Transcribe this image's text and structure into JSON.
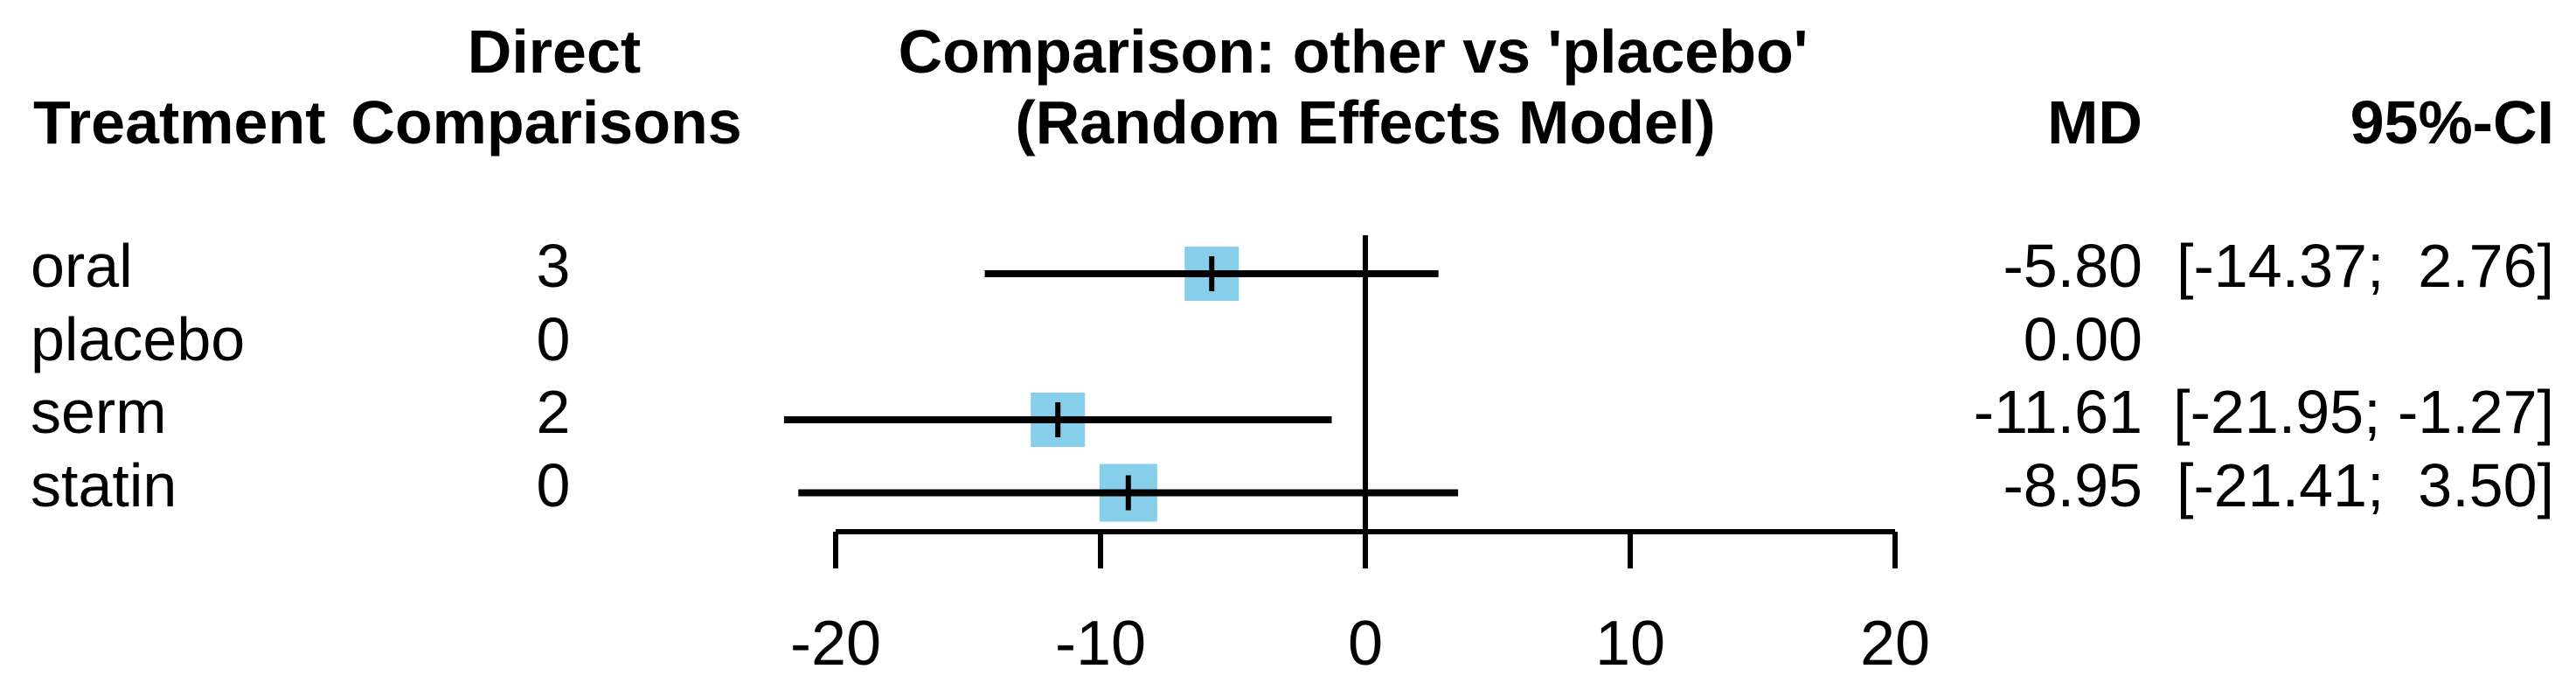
{
  "header": {
    "treatment": "Treatment",
    "direct_line1": "Direct",
    "direct_line2": "Comparisons",
    "comparison_line1": "Comparison: other vs 'placebo'",
    "comparison_line2": "(Random Effects Model)",
    "md": "MD",
    "ci": "95%-CI"
  },
  "chart_data": {
    "type": "forest",
    "title": "Comparison: other vs 'placebo' (Random Effects Model)",
    "effect_measure": "MD",
    "reference_treatment": "placebo",
    "x_axis": {
      "ticks": [
        -20,
        -10,
        0,
        10,
        20
      ],
      "tick_labels": [
        "-20",
        "-10",
        "0",
        "10",
        "20"
      ],
      "range": [
        -20,
        20
      ],
      "reference_line": 0
    },
    "square_color": "#87CEEB",
    "line_color": "#000000",
    "rows": [
      {
        "treatment": "oral",
        "direct_comparisons": "3",
        "md": -5.8,
        "ci_lower": -14.37,
        "ci_upper": 2.76,
        "md_label": "-5.80",
        "ci_label": "[-14.37;  2.76]",
        "square_size": 62
      },
      {
        "treatment": "placebo",
        "direct_comparisons": "0",
        "md": 0.0,
        "ci_lower": null,
        "ci_upper": null,
        "md_label": "0.00",
        "ci_label": "",
        "square_size": 0
      },
      {
        "treatment": "serm",
        "direct_comparisons": "2",
        "md": -11.61,
        "ci_lower": -21.95,
        "ci_upper": -1.27,
        "md_label": "-11.61",
        "ci_label": "[-21.95; -1.27]",
        "square_size": 62
      },
      {
        "treatment": "statin",
        "direct_comparisons": "0",
        "md": -8.95,
        "ci_lower": -21.41,
        "ci_upper": 3.5,
        "md_label": "-8.95",
        "ci_label": "[-21.41;  3.50]",
        "square_size": 66
      }
    ]
  }
}
